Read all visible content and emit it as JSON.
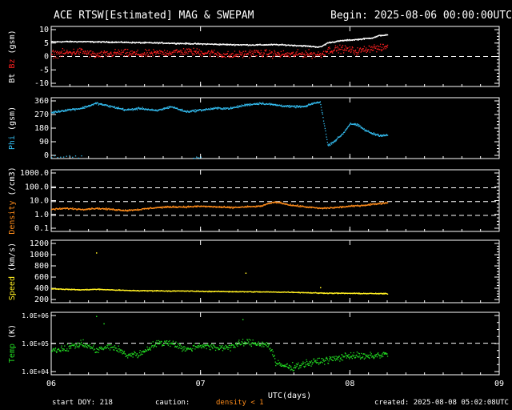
{
  "header": {
    "title": "ACE RTSW[Estimated] MAG & SWEPAM",
    "begin": "Begin: 2025-08-06 00:00:00UTC"
  },
  "footer": {
    "start_doy": "start DOY: 218",
    "caution": "caution:",
    "density_note": "density < 1",
    "created": "created: 2025-08-08 05:02:08UTC"
  },
  "colors": {
    "background": "#000000",
    "axes": "#ffffff",
    "bt": "#ffffff",
    "bz": "#ff2020",
    "phi": "#33bbee",
    "density": "#ff8c1a",
    "speed": "#ffee22",
    "temp": "#22dd22"
  },
  "chart_data": [
    {
      "type": "scatter",
      "panel": "mag-field",
      "ylabel_parts": [
        "Bt",
        "Bz",
        "(gsm)"
      ],
      "yticks": [
        "10",
        "5",
        "0",
        "-5",
        "-10"
      ],
      "ylim": [
        -11,
        11
      ],
      "dashed_ref": [
        0
      ],
      "x_domain": [
        6,
        9
      ],
      "series": [
        {
          "name": "Bt",
          "x": [
            6.0,
            6.1,
            6.2,
            6.3,
            6.45,
            6.6,
            6.75,
            6.9,
            7.05,
            7.2,
            7.35,
            7.5,
            7.6,
            7.7,
            7.8,
            7.85,
            7.95,
            8.05,
            8.15,
            8.2,
            8.25
          ],
          "y": [
            5.5,
            5.6,
            5.6,
            5.5,
            5.4,
            5.2,
            5.1,
            4.9,
            4.7,
            4.5,
            4.4,
            4.5,
            4.3,
            4.0,
            3.6,
            5.2,
            6.0,
            6.4,
            7.0,
            7.9,
            8.0
          ]
        },
        {
          "name": "Bz",
          "x": [
            6.0,
            6.1,
            6.2,
            6.3,
            6.45,
            6.6,
            6.75,
            6.9,
            7.05,
            7.2,
            7.35,
            7.5,
            7.6,
            7.7,
            7.8,
            7.85,
            7.95,
            8.05,
            8.15,
            8.2,
            8.25
          ],
          "y": [
            1.0,
            1.5,
            2.0,
            0.5,
            1.5,
            1.0,
            1.5,
            2.0,
            1.5,
            0.5,
            1.5,
            1.0,
            0.8,
            1.2,
            0.8,
            2.5,
            3.0,
            2.0,
            3.5,
            3.0,
            4.0
          ]
        }
      ]
    },
    {
      "type": "scatter",
      "panel": "phi",
      "ylabel": "Phi (gsm)",
      "yticks": [
        "360",
        "270",
        "180",
        "90",
        "0"
      ],
      "ylim": [
        0,
        360
      ],
      "x_domain": [
        6,
        9
      ],
      "series": [
        {
          "name": "Phi",
          "x": [
            6.0,
            6.1,
            6.2,
            6.3,
            6.4,
            6.5,
            6.6,
            6.7,
            6.8,
            6.9,
            7.0,
            7.1,
            7.2,
            7.3,
            7.4,
            7.5,
            7.6,
            7.7,
            7.75,
            7.8,
            7.85,
            7.9,
            7.95,
            8.0,
            8.05,
            8.1,
            8.15,
            8.2,
            8.25
          ],
          "y": [
            275,
            290,
            300,
            330,
            310,
            290,
            300,
            285,
            310,
            280,
            290,
            300,
            300,
            320,
            330,
            320,
            310,
            310,
            330,
            335,
            80,
            110,
            150,
            210,
            200,
            170,
            150,
            140,
            140
          ]
        }
      ]
    },
    {
      "type": "scatter",
      "panel": "density",
      "ylabel": "Density (/cm3)",
      "yticks": [
        "1000.0",
        "100.0",
        "10.0",
        "1.0",
        "0.1"
      ],
      "yscale": "log",
      "ylim": [
        0.07,
        2000
      ],
      "dashed_ref": [
        100,
        10,
        1
      ],
      "x_domain": [
        6,
        9
      ],
      "series": [
        {
          "name": "Density",
          "x": [
            6.0,
            6.1,
            6.2,
            6.3,
            6.4,
            6.5,
            6.6,
            6.7,
            6.8,
            6.9,
            7.0,
            7.1,
            7.2,
            7.3,
            7.4,
            7.5,
            7.6,
            7.7,
            7.8,
            7.9,
            8.0,
            8.1,
            8.2,
            8.25
          ],
          "y": [
            3.0,
            3.5,
            3.0,
            3.5,
            3.0,
            2.5,
            3.0,
            4.0,
            4.5,
            4.5,
            5.0,
            4.5,
            4.0,
            4.5,
            5.0,
            10.0,
            6.0,
            4.5,
            3.5,
            4.0,
            5.0,
            6.0,
            8.0,
            9.0
          ]
        }
      ]
    },
    {
      "type": "scatter",
      "panel": "speed",
      "ylabel": "Speed (km/s)",
      "yticks": [
        "1200",
        "1000",
        "800",
        "600",
        "400",
        "200"
      ],
      "ylim": [
        180,
        1260
      ],
      "x_domain": [
        6,
        9
      ],
      "series": [
        {
          "name": "Speed",
          "x": [
            6.0,
            6.1,
            6.2,
            6.3,
            6.4,
            6.5,
            6.6,
            6.7,
            6.8,
            6.9,
            7.0,
            7.2,
            7.4,
            7.6,
            7.8,
            8.0,
            8.2,
            8.25
          ],
          "y": [
            430,
            420,
            410,
            420,
            410,
            400,
            395,
            395,
            390,
            390,
            385,
            380,
            375,
            370,
            355,
            350,
            345,
            345
          ]
        }
      ]
    },
    {
      "type": "scatter",
      "panel": "temperature",
      "ylabel": "Temp (K)",
      "yticks": [
        "1.0E+06",
        "1.0E+05",
        "1.0E+04"
      ],
      "yscale": "log",
      "ylim": [
        8000,
        1200000
      ],
      "dashed_ref": [
        100000
      ],
      "x_domain": [
        6,
        9
      ],
      "xticks": [
        "06",
        "07",
        "08",
        "09"
      ],
      "xlabel": "UTC(days)",
      "series": [
        {
          "name": "Temp",
          "x": [
            6.0,
            6.1,
            6.2,
            6.3,
            6.4,
            6.5,
            6.6,
            6.7,
            6.8,
            6.9,
            7.0,
            7.1,
            7.2,
            7.3,
            7.4,
            7.45,
            7.5,
            7.6,
            7.7,
            7.8,
            7.9,
            8.0,
            8.1,
            8.2,
            8.25
          ],
          "y": [
            60000,
            70000,
            100000,
            60000,
            80000,
            40000,
            45000,
            100000,
            110000,
            60000,
            90000,
            70000,
            80000,
            110000,
            100000,
            90000,
            20000,
            15000,
            20000,
            25000,
            30000,
            40000,
            35000,
            40000,
            45000
          ]
        }
      ]
    }
  ]
}
